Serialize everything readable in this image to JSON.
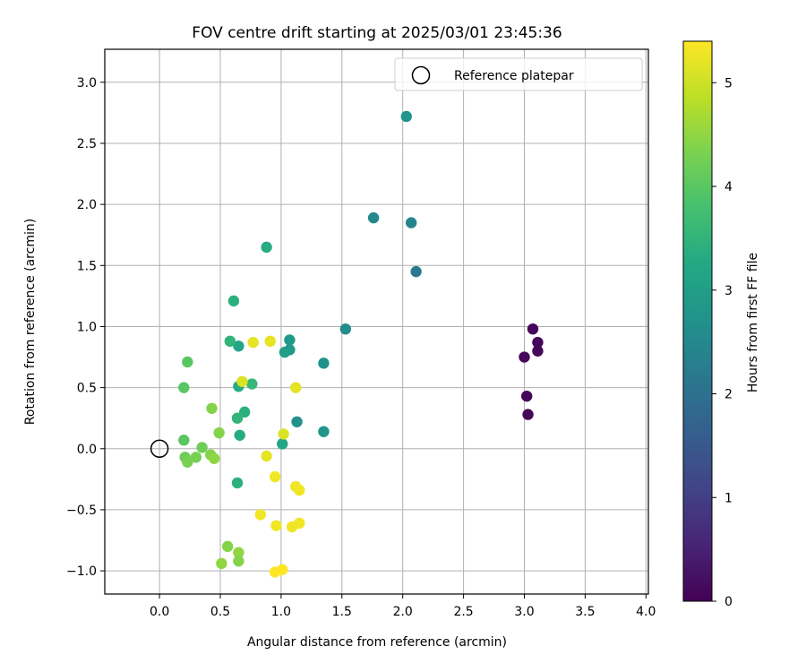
{
  "chart_data": {
    "type": "scatter",
    "title": "FOV centre drift starting at 2025/03/01 23:45:36",
    "xlabel": "Angular distance from reference (arcmin)",
    "ylabel": "Rotation from reference (arcmin)",
    "xlim": [
      -0.45,
      4.02
    ],
    "ylim": [
      -1.19,
      3.27
    ],
    "xticks": [
      0.0,
      0.5,
      1.0,
      1.5,
      2.0,
      2.5,
      3.0,
      3.5,
      4.0
    ],
    "xtick_labels": [
      "0.0",
      "0.5",
      "1.0",
      "1.5",
      "2.0",
      "2.5",
      "3.0",
      "3.5",
      "4.0"
    ],
    "yticks": [
      -1.0,
      -0.5,
      0.0,
      0.5,
      1.0,
      1.5,
      2.0,
      2.5,
      3.0
    ],
    "ytick_labels": [
      "−1.0",
      "−0.5",
      "0.0",
      "0.5",
      "1.0",
      "1.5",
      "2.0",
      "2.5",
      "3.0"
    ],
    "grid": true,
    "legend": {
      "placement": "top-right",
      "entries": [
        "Reference platepar"
      ]
    },
    "reference_point": {
      "x": 0.0,
      "y": 0.0,
      "label": "Reference platepar"
    },
    "colorbar": {
      "label": "Hours from first FF file",
      "range": [
        0,
        5.4
      ],
      "ticks": [
        0,
        1,
        2,
        3,
        4,
        5
      ],
      "tick_labels": [
        "0",
        "1",
        "2",
        "3",
        "4",
        "5"
      ],
      "colormap": "viridis"
    },
    "points": [
      {
        "x": 3.07,
        "y": 0.98,
        "c": 0.1
      },
      {
        "x": 3.11,
        "y": 0.87,
        "c": 0.1
      },
      {
        "x": 3.11,
        "y": 0.8,
        "c": 0.1
      },
      {
        "x": 3.0,
        "y": 0.75,
        "c": 0.1
      },
      {
        "x": 3.02,
        "y": 0.43,
        "c": 0.1
      },
      {
        "x": 3.03,
        "y": 0.28,
        "c": 0.1
      },
      {
        "x": 2.03,
        "y": 2.72,
        "c": 2.8
      },
      {
        "x": 1.76,
        "y": 1.89,
        "c": 2.5
      },
      {
        "x": 2.07,
        "y": 1.85,
        "c": 2.4
      },
      {
        "x": 2.11,
        "y": 1.45,
        "c": 2.2
      },
      {
        "x": 1.53,
        "y": 0.98,
        "c": 2.6
      },
      {
        "x": 1.35,
        "y": 0.7,
        "c": 2.7
      },
      {
        "x": 1.13,
        "y": 0.22,
        "c": 2.7
      },
      {
        "x": 1.35,
        "y": 0.14,
        "c": 2.8
      },
      {
        "x": 1.07,
        "y": 0.81,
        "c": 2.9
      },
      {
        "x": 1.07,
        "y": 0.89,
        "c": 2.9
      },
      {
        "x": 1.03,
        "y": 0.79,
        "c": 3.0
      },
      {
        "x": 0.88,
        "y": 1.65,
        "c": 3.3
      },
      {
        "x": 0.61,
        "y": 1.21,
        "c": 3.4
      },
      {
        "x": 0.65,
        "y": 0.84,
        "c": 3.2
      },
      {
        "x": 0.58,
        "y": 0.88,
        "c": 3.5
      },
      {
        "x": 0.76,
        "y": 0.53,
        "c": 3.6
      },
      {
        "x": 0.65,
        "y": 0.51,
        "c": 3.3
      },
      {
        "x": 0.7,
        "y": 0.3,
        "c": 3.4
      },
      {
        "x": 0.64,
        "y": 0.25,
        "c": 3.5
      },
      {
        "x": 0.66,
        "y": 0.11,
        "c": 3.3
      },
      {
        "x": 1.01,
        "y": 0.04,
        "c": 3.2
      },
      {
        "x": 0.64,
        "y": -0.28,
        "c": 3.4
      },
      {
        "x": 0.23,
        "y": 0.71,
        "c": 4.0
      },
      {
        "x": 0.2,
        "y": 0.5,
        "c": 4.0
      },
      {
        "x": 0.2,
        "y": 0.07,
        "c": 4.0
      },
      {
        "x": 0.43,
        "y": 0.33,
        "c": 4.4
      },
      {
        "x": 0.49,
        "y": 0.13,
        "c": 4.4
      },
      {
        "x": 0.35,
        "y": 0.01,
        "c": 4.2
      },
      {
        "x": 0.21,
        "y": -0.07,
        "c": 4.2
      },
      {
        "x": 0.23,
        "y": -0.11,
        "c": 4.3
      },
      {
        "x": 0.3,
        "y": -0.07,
        "c": 4.3
      },
      {
        "x": 0.42,
        "y": -0.05,
        "c": 4.4
      },
      {
        "x": 0.45,
        "y": -0.08,
        "c": 4.5
      },
      {
        "x": 0.56,
        "y": -0.8,
        "c": 4.4
      },
      {
        "x": 0.65,
        "y": -0.85,
        "c": 4.5
      },
      {
        "x": 0.65,
        "y": -0.92,
        "c": 4.4
      },
      {
        "x": 0.51,
        "y": -0.94,
        "c": 4.5
      },
      {
        "x": 0.77,
        "y": 0.87,
        "c": 5.2
      },
      {
        "x": 0.91,
        "y": 0.88,
        "c": 5.2
      },
      {
        "x": 0.68,
        "y": 0.55,
        "c": 5.1
      },
      {
        "x": 1.12,
        "y": 0.5,
        "c": 5.2
      },
      {
        "x": 1.02,
        "y": 0.12,
        "c": 5.1
      },
      {
        "x": 0.88,
        "y": -0.06,
        "c": 5.2
      },
      {
        "x": 0.95,
        "y": -0.23,
        "c": 5.3
      },
      {
        "x": 1.12,
        "y": -0.31,
        "c": 5.3
      },
      {
        "x": 1.15,
        "y": -0.34,
        "c": 5.3
      },
      {
        "x": 0.83,
        "y": -0.54,
        "c": 5.3
      },
      {
        "x": 0.96,
        "y": -0.63,
        "c": 5.3
      },
      {
        "x": 1.09,
        "y": -0.64,
        "c": 5.3
      },
      {
        "x": 1.15,
        "y": -0.61,
        "c": 5.3
      },
      {
        "x": 0.95,
        "y": -1.01,
        "c": 5.4
      },
      {
        "x": 1.01,
        "y": -0.99,
        "c": 5.4
      }
    ]
  }
}
